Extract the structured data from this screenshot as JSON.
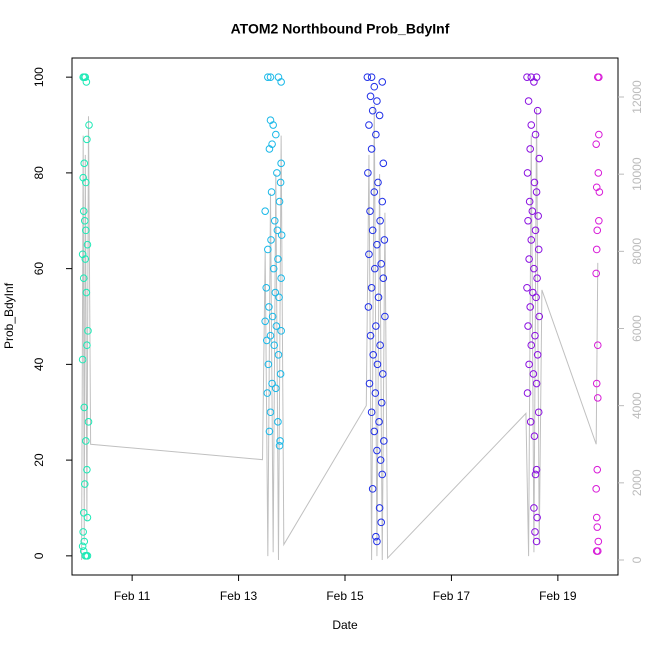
{
  "chart_data": {
    "type": "scatter",
    "title": "ATOM2 Northbound Prob_BdyInf",
    "xlabel": "Date",
    "ylabel": "Prob_BdyInf",
    "xlim": [
      9.87,
      20.13
    ],
    "ylim": [
      -4,
      104
    ],
    "y2lim": [
      -389,
      13011
    ],
    "xticks": [
      {
        "value": 11,
        "label": "Feb 11"
      },
      {
        "value": 13,
        "label": "Feb 13"
      },
      {
        "value": 15,
        "label": "Feb 15"
      },
      {
        "value": 17,
        "label": "Feb 17"
      },
      {
        "value": 19,
        "label": "Feb 19"
      }
    ],
    "yticks": [
      0,
      20,
      40,
      60,
      80,
      100
    ],
    "y2ticks": [
      0,
      2000,
      4000,
      6000,
      8000,
      10000,
      12000
    ],
    "y2color": "#bbbbbb",
    "series": [
      {
        "color": "#1de9b6",
        "x": [
          10.08,
          10.1,
          10.12,
          10.14,
          10.1,
          10.08,
          10.09,
          10.11,
          10.13,
          10.16,
          10.07,
          10.12,
          10.09,
          10.14,
          10.17,
          10.15,
          10.07,
          10.1,
          10.18,
          10.13,
          10.15,
          10.11,
          10.09,
          10.16,
          10.08,
          10.1,
          10.07,
          10.09,
          10.12,
          10.14,
          10.16,
          10.19,
          10.15,
          10.13
        ],
        "values": [
          100,
          100,
          100,
          99,
          82,
          79,
          72,
          70,
          68,
          65,
          63,
          62,
          58,
          55,
          47,
          44,
          41,
          31,
          28,
          24,
          18,
          15,
          9,
          8,
          5,
          3,
          2,
          1,
          0,
          0,
          0,
          90,
          87,
          78
        ]
      },
      {
        "color": "#19b8e8",
        "x": [
          13.55,
          13.6,
          13.75,
          13.8,
          13.6,
          13.65,
          13.7,
          13.63,
          13.58,
          13.8,
          13.72,
          13.79,
          13.62,
          13.77,
          13.5,
          13.68,
          13.73,
          13.81,
          13.61,
          13.55,
          13.74,
          13.66,
          13.8,
          13.52,
          13.69,
          13.76,
          13.57,
          13.64,
          13.5,
          13.71,
          13.8,
          13.6,
          13.53,
          13.67,
          13.75,
          13.56,
          13.79,
          13.63,
          13.7,
          13.54,
          13.6,
          13.74,
          13.58,
          13.78,
          13.77
        ],
        "values": [
          100,
          100,
          100,
          99,
          91,
          90,
          88,
          86,
          85,
          82,
          80,
          78,
          76,
          74,
          72,
          70,
          68,
          67,
          66,
          64,
          62,
          60,
          58,
          56,
          55,
          54,
          52,
          50,
          49,
          48,
          47,
          46,
          45,
          44,
          42,
          40,
          38,
          36,
          35,
          34,
          30,
          28,
          26,
          24,
          23
        ]
      },
      {
        "color": "#2030e8",
        "x": [
          15.42,
          15.5,
          15.7,
          15.55,
          15.48,
          15.6,
          15.52,
          15.65,
          15.45,
          15.58,
          15.5,
          15.72,
          15.43,
          15.62,
          15.55,
          15.7,
          15.47,
          15.66,
          15.52,
          15.74,
          15.6,
          15.45,
          15.68,
          15.56,
          15.72,
          15.5,
          15.63,
          15.44,
          15.75,
          15.58,
          15.48,
          15.66,
          15.53,
          15.61,
          15.71,
          15.46,
          15.57,
          15.69,
          15.5,
          15.64,
          15.55,
          15.73,
          15.6,
          15.67,
          15.7,
          15.52,
          15.65,
          15.68,
          15.58,
          15.6
        ],
        "values": [
          100,
          100,
          99,
          98,
          96,
          95,
          93,
          92,
          90,
          88,
          85,
          82,
          80,
          78,
          76,
          74,
          72,
          70,
          68,
          66,
          65,
          63,
          61,
          60,
          58,
          56,
          54,
          52,
          50,
          48,
          46,
          44,
          42,
          40,
          38,
          36,
          34,
          32,
          30,
          28,
          26,
          24,
          22,
          20,
          17,
          14,
          10,
          7,
          4,
          3
        ]
      },
      {
        "color": "#8a10e0",
        "x": [
          18.42,
          18.5,
          18.6,
          18.55,
          18.45,
          18.62,
          18.5,
          18.58,
          18.48,
          18.65,
          18.43,
          18.56,
          18.6,
          18.47,
          18.52,
          18.63,
          18.44,
          18.58,
          18.5,
          18.64,
          18.46,
          18.55,
          18.61,
          18.42,
          18.53,
          18.59,
          18.48,
          18.65,
          18.44,
          18.57,
          18.5,
          18.62,
          18.46,
          18.54,
          18.6,
          18.43,
          18.64,
          18.49,
          18.56,
          18.6,
          18.58,
          18.55,
          18.61,
          18.57,
          18.6
        ],
        "values": [
          100,
          100,
          100,
          99,
          95,
          93,
          90,
          88,
          85,
          83,
          80,
          78,
          76,
          74,
          72,
          71,
          70,
          68,
          66,
          64,
          62,
          60,
          58,
          56,
          55,
          54,
          52,
          50,
          48,
          46,
          44,
          42,
          40,
          38,
          36,
          34,
          30,
          28,
          25,
          18,
          17,
          10,
          8,
          5,
          3
        ]
      },
      {
        "color": "#d81ad8",
        "x": [
          19.75,
          19.77,
          19.77,
          19.72,
          19.76,
          19.73,
          19.78,
          19.77,
          19.74,
          19.73,
          19.72,
          19.75,
          19.73,
          19.75,
          19.74,
          19.72,
          19.73,
          19.74,
          19.76,
          19.75,
          19.73
        ],
        "values": [
          100,
          100,
          88,
          86,
          80,
          77,
          76,
          70,
          68,
          64,
          59,
          44,
          36,
          33,
          18,
          14,
          8,
          6,
          3,
          1,
          1
        ]
      }
    ],
    "line": {
      "axis": "y2",
      "color": "#c0c0c0",
      "x": [
        10.05,
        10.08,
        10.1,
        10.12,
        10.15,
        10.18,
        10.22,
        13.45,
        13.5,
        13.55,
        13.6,
        13.65,
        13.7,
        13.75,
        13.8,
        13.85,
        15.4,
        15.45,
        15.5,
        15.55,
        15.6,
        15.65,
        15.7,
        15.75,
        15.8,
        18.4,
        18.45,
        18.5,
        18.55,
        18.6,
        18.65,
        18.7,
        19.72,
        19.75
      ],
      "values": [
        0,
        11000,
        500,
        10500,
        1000,
        11500,
        3000,
        2600,
        8000,
        100,
        9500,
        200,
        10000,
        0,
        11000,
        400,
        4000,
        10500,
        0,
        11800,
        100,
        10000,
        0,
        9000,
        50,
        3800,
        100,
        11000,
        200,
        11700,
        400,
        7000,
        3000,
        7700
      ]
    }
  }
}
